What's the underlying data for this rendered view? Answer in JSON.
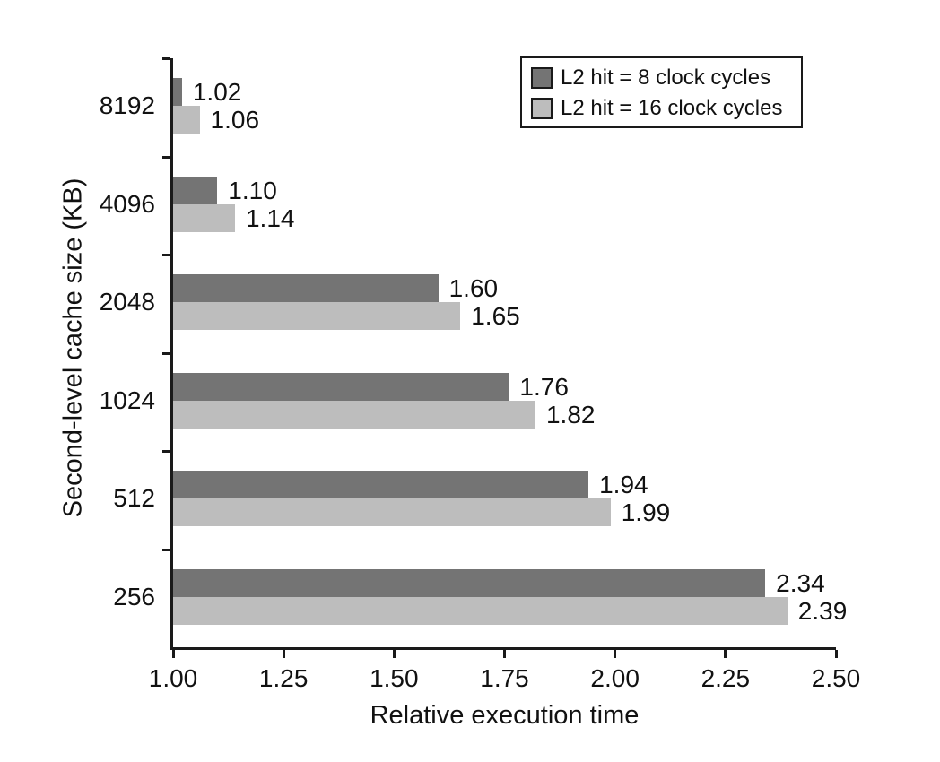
{
  "chart_data": {
    "type": "bar",
    "orientation": "horizontal",
    "title": "",
    "xlabel": "Relative execution time",
    "ylabel": "Second-level cache size (KB)",
    "categories": [
      "8192",
      "4096",
      "2048",
      "1024",
      "512",
      "256"
    ],
    "series": [
      {
        "name": "L2 hit = 8 clock cycles",
        "color": "#747474",
        "values": [
          1.02,
          1.1,
          1.6,
          1.76,
          1.94,
          2.34
        ]
      },
      {
        "name": "L2 hit = 16 clock cycles",
        "color": "#bdbdbd",
        "values": [
          1.06,
          1.14,
          1.65,
          1.82,
          1.99,
          2.39
        ]
      }
    ],
    "xlim": [
      1.0,
      2.5
    ],
    "x_ticks": [
      "1.00",
      "1.25",
      "1.50",
      "1.75",
      "2.00",
      "2.25",
      "2.50"
    ],
    "value_label_format": "2-decimals",
    "grid": false,
    "legend_position": "top-right",
    "axis_color": "#1a1a1a",
    "text_color": "#111111",
    "background_color": "#ffffff"
  }
}
